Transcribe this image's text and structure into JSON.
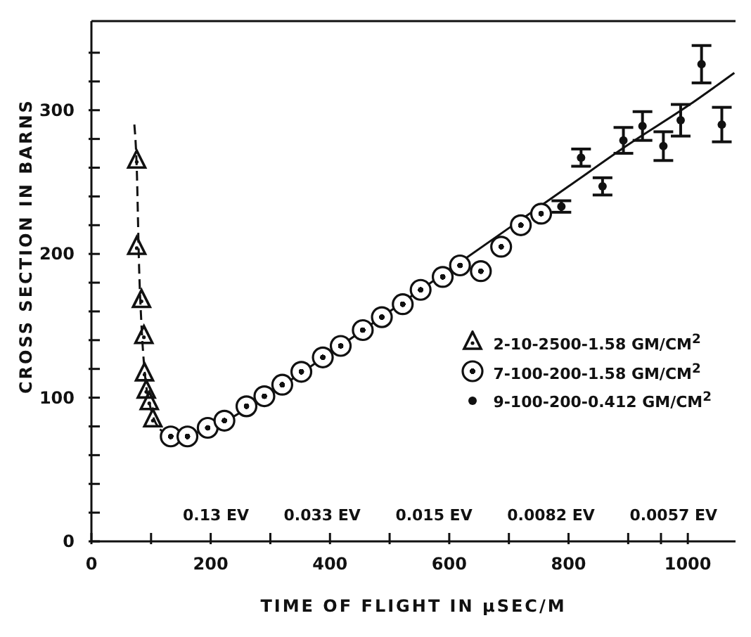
{
  "chart_data": {
    "type": "scatter",
    "xlabel": "TIME OF FLIGHT IN μSEC/M",
    "ylabel": "CROSS SECTION IN BARNS",
    "xlim": [
      0,
      1080
    ],
    "ylim": [
      0,
      362
    ],
    "xticks": [
      0,
      {
        "value": 100,
        "label": null
      },
      200,
      {
        "value": 300,
        "label": null
      },
      400,
      {
        "value": 500,
        "label": null
      },
      600,
      {
        "value": 700,
        "label": null
      },
      800,
      {
        "value": 900,
        "label": null
      },
      {
        "value": 955,
        "label": null
      },
      1000
    ],
    "yticks": [
      0,
      {
        "value": 20,
        "label": null
      },
      {
        "value": 40,
        "label": null
      },
      {
        "value": 60,
        "label": null
      },
      {
        "value": 80,
        "label": null
      },
      100,
      {
        "value": 120,
        "label": null
      },
      {
        "value": 140,
        "label": null
      },
      {
        "value": 160,
        "label": null
      },
      {
        "value": 180,
        "label": null
      },
      200,
      {
        "value": 220,
        "label": null
      },
      {
        "value": 240,
        "label": null
      },
      {
        "value": 260,
        "label": null
      },
      {
        "value": 280,
        "label": null
      },
      300,
      {
        "value": 320,
        "label": null
      },
      {
        "value": 340,
        "label": null
      }
    ],
    "grid": false,
    "legend": "right",
    "series": [
      {
        "name": "2-10-2500-1.58 GM/CM$^{2}$",
        "color": "#111111",
        "marker": "triangle",
        "x": [
          76,
          76,
          84,
          88,
          89,
          92,
          97,
          103
        ],
        "values": [
          265,
          205,
          168,
          143,
          117,
          105,
          97,
          85
        ]
      },
      {
        "name": "7-100-200-1.58 GM/CM$^{2}$",
        "color": "#111111",
        "marker": "circle",
        "x": [
          133,
          161,
          195,
          223,
          260,
          290,
          320,
          352,
          388,
          418,
          455,
          487,
          522,
          552,
          589,
          618,
          653,
          687,
          720,
          754
        ],
        "values": [
          73,
          73,
          79,
          84,
          94,
          101,
          109,
          118,
          128,
          136,
          147,
          156,
          165,
          175,
          184,
          192,
          188,
          205,
          220,
          228
        ]
      },
      {
        "name": "9-100-200-0.412 GM/CM$^{2}$",
        "color": "#111111",
        "marker": "circle",
        "x": [
          788,
          821,
          857,
          892,
          924,
          959,
          988,
          1023,
          1057
        ],
        "values": [
          233,
          267,
          247,
          279,
          289,
          275,
          293,
          332,
          290
        ],
        "errors": [
          4,
          6,
          6,
          9,
          10,
          10,
          11,
          13,
          12
        ]
      },
      {
        "type": "line",
        "color": "#111111",
        "line_style": "dashed",
        "marker": "none",
        "x": [
          72,
          76,
          80,
          84,
          90,
          98,
          105,
          115
        ],
        "values": [
          290,
          260,
          190,
          150,
          115,
          95,
          85,
          78
        ]
      },
      {
        "type": "line",
        "color": "#111111",
        "line_style": "solid",
        "marker": "none",
        "x": [
          115,
          133,
          160,
          200,
          300,
          400,
          500,
          600,
          700,
          800,
          900,
          1000,
          1078
        ],
        "values": [
          78,
          73,
          74,
          79,
          103,
          131,
          160,
          189,
          218,
          247,
          276,
          303,
          326
        ]
      }
    ],
    "annotations": [
      "0.13 EV",
      "0.033 EV",
      "0.015 EV",
      "0.0082 EV",
      "0.0057 EV"
    ]
  }
}
